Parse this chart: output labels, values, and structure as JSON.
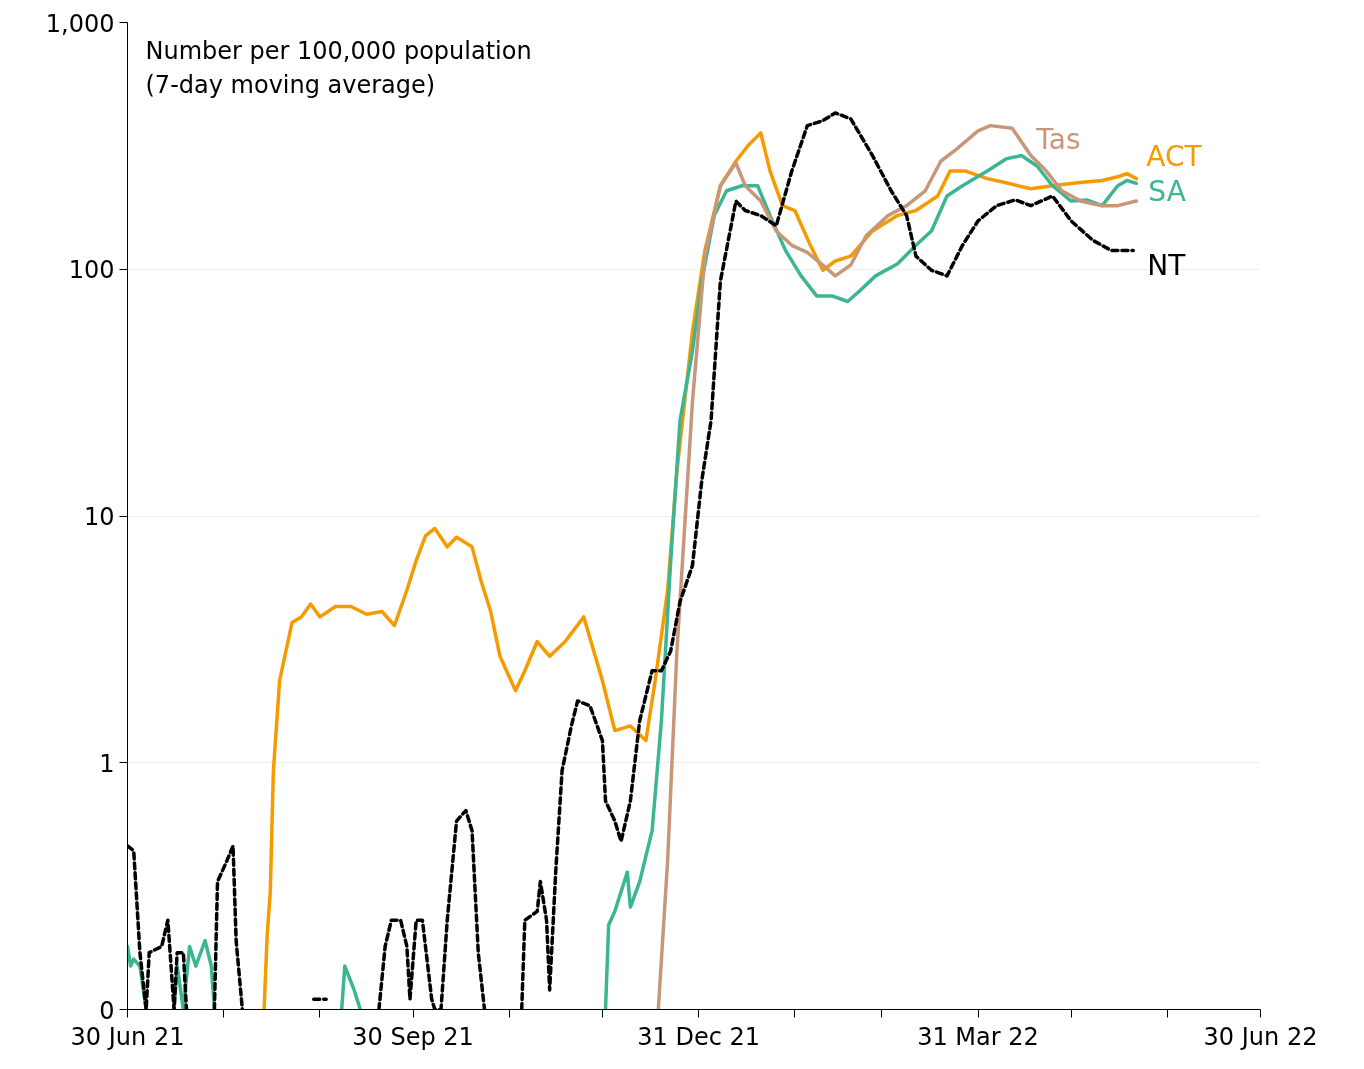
{
  "chart_data": {
    "type": "line",
    "annotations": [
      "Number per 100,000 population\n(7-day moving average)"
    ],
    "xlim": [
      "2021-06-30",
      "2022-06-30"
    ],
    "xticks": [
      {
        "value": "2021-06-30",
        "label": "30 Jun 21"
      },
      {
        "value": "2021-07-31",
        "label": null
      },
      {
        "value": "2021-08-31",
        "label": null
      },
      {
        "value": "2021-09-30",
        "label": "30 Sep 21"
      },
      {
        "value": "2021-10-31",
        "label": null
      },
      {
        "value": "2021-11-30",
        "label": null
      },
      {
        "value": "2021-12-31",
        "label": "31 Dec 21"
      },
      {
        "value": "2022-01-31",
        "label": null
      },
      {
        "value": "2022-02-28",
        "label": null
      },
      {
        "value": "2022-03-31",
        "label": "31 Mar 22"
      },
      {
        "value": "2022-04-30",
        "label": null
      },
      {
        "value": "2022-05-31",
        "label": null
      },
      {
        "value": "2022-06-30",
        "label": "30 Jun 22"
      }
    ],
    "ylim": [
      0.1,
      1000
    ],
    "yticks": [
      {
        "value": 0.1,
        "label": "0"
      },
      1,
      10,
      100,
      {
        "value": 1000,
        "label": "1,000"
      }
    ],
    "log": "y",
    "grid": "y",
    "legend": false,
    "marker": "none",
    "series": [
      {
        "name": "ACT",
        "color": "#f59b00",
        "line_style": "solid",
        "x": [
          "2021-08-13",
          "2021-08-14",
          "2021-08-15",
          "2021-08-16",
          "2021-08-18",
          "2021-08-22",
          "2021-08-25",
          "2021-08-28",
          "2021-08-31",
          "2021-09-05",
          "2021-09-10",
          "2021-09-15",
          "2021-09-20",
          "2021-09-24",
          "2021-09-28",
          "2021-10-01",
          "2021-10-04",
          "2021-10-07",
          "2021-10-11",
          "2021-10-14",
          "2021-10-19",
          "2021-10-22",
          "2021-10-25",
          "2021-10-28",
          "2021-11-02",
          "2021-11-05",
          "2021-11-09",
          "2021-11-13",
          "2021-11-18",
          "2021-11-24",
          "2021-11-30",
          "2021-12-04",
          "2021-12-09",
          "2021-12-14",
          "2021-12-17",
          "2021-12-21",
          "2021-12-24",
          "2021-12-29",
          "2022-01-02",
          "2022-01-07",
          "2022-01-12",
          "2022-01-16",
          "2022-01-20",
          "2022-01-23",
          "2022-01-27",
          "2022-01-31",
          "2022-02-05",
          "2022-02-09",
          "2022-02-13",
          "2022-02-18",
          "2022-02-25",
          "2022-03-05",
          "2022-03-11",
          "2022-03-18",
          "2022-03-22",
          "2022-03-27",
          "2022-04-03",
          "2022-04-09",
          "2022-04-17",
          "2022-04-24",
          "2022-05-02",
          "2022-05-10",
          "2022-05-15",
          "2022-05-18",
          "2022-05-21"
        ],
        "values": [
          0.1,
          0.2,
          0.3,
          0.93,
          2.15,
          3.7,
          3.9,
          4.4,
          3.9,
          4.3,
          4.3,
          4.0,
          4.1,
          3.6,
          5.0,
          6.6,
          8.3,
          8.9,
          7.5,
          8.2,
          7.5,
          5.4,
          4.1,
          2.7,
          1.96,
          2.36,
          3.1,
          2.7,
          3.1,
          3.9,
          2.15,
          1.35,
          1.41,
          1.23,
          2.15,
          5.0,
          15.2,
          56,
          119,
          218,
          274,
          318,
          357,
          250,
          181,
          173,
          125,
          99,
          108,
          113,
          143,
          165,
          173,
          198,
          250,
          250,
          233,
          224,
          212,
          218,
          224,
          229,
          237,
          244,
          233
        ]
      },
      {
        "name": "SA",
        "color": "#3cb592",
        "line_style": "solid",
        "x": [
          "2021-06-30",
          "2021-07-01",
          "2021-07-02",
          "2021-07-04",
          "2021-07-06",
          "2021-07-08",
          "2021-07-15",
          "2021-07-16",
          "2021-07-18",
          "2021-07-20",
          "2021-07-22",
          "2021-07-25",
          "2021-07-27",
          "2021-07-28",
          "2021-07-30",
          "2021-09-07",
          "2021-09-08",
          "2021-09-11",
          "2021-09-13",
          "2021-09-18",
          "2021-12-01",
          "2021-12-02",
          "2021-12-04",
          "2021-12-08",
          "2021-12-09",
          "2021-12-12",
          "2021-12-16",
          "2021-12-19",
          "2021-12-22",
          "2021-12-25",
          "2021-12-29",
          "2022-01-01",
          "2022-01-05",
          "2022-01-09",
          "2022-01-14",
          "2022-01-19",
          "2022-01-23",
          "2022-01-28",
          "2022-02-02",
          "2022-02-07",
          "2022-02-12",
          "2022-02-17",
          "2022-02-21",
          "2022-02-26",
          "2022-03-05",
          "2022-03-11",
          "2022-03-16",
          "2022-03-21",
          "2022-03-26",
          "2022-04-03",
          "2022-04-09",
          "2022-04-14",
          "2022-04-19",
          "2022-04-24",
          "2022-04-30",
          "2022-05-05",
          "2022-05-10",
          "2022-05-15",
          "2022-05-18",
          "2022-05-21"
        ],
        "values": [
          0.18,
          0.15,
          0.16,
          0.15,
          0.1,
          null,
          0.1,
          0.15,
          0.1,
          0.18,
          0.15,
          0.19,
          0.15,
          0.1,
          null,
          0.1,
          0.15,
          0.12,
          0.1,
          null,
          0.1,
          0.22,
          0.25,
          0.36,
          0.26,
          0.33,
          0.53,
          1.48,
          6.6,
          24.4,
          46.6,
          89.5,
          165,
          208,
          218,
          218,
          165,
          119,
          94,
          78,
          78,
          74,
          82,
          94,
          105,
          125,
          143,
          198,
          218,
          250,
          280,
          289,
          262,
          218,
          189,
          191,
          181,
          218,
          229,
          223
        ]
      },
      {
        "name": "Tas",
        "color": "#c8977a",
        "line_style": "solid",
        "x": [
          "2021-12-18",
          "2021-12-21",
          "2021-12-24",
          "2021-12-29",
          "2022-01-02",
          "2022-01-07",
          "2022-01-12",
          "2022-01-15",
          "2022-01-20",
          "2022-01-25",
          "2022-01-30",
          "2022-02-04",
          "2022-02-09",
          "2022-02-13",
          "2022-02-18",
          "2022-02-23",
          "2022-03-02",
          "2022-03-08",
          "2022-03-14",
          "2022-03-19",
          "2022-03-24",
          "2022-03-31",
          "2022-04-04",
          "2022-04-11",
          "2022-04-17",
          "2022-04-22",
          "2022-04-27",
          "2022-05-03",
          "2022-05-10",
          "2022-05-15",
          "2022-05-21"
        ],
        "values": [
          0.1,
          0.4,
          2.84,
          29,
          113,
          218,
          270,
          218,
          189,
          143,
          125,
          117,
          104,
          94,
          104,
          137,
          165,
          181,
          208,
          274,
          306,
          364,
          382,
          373,
          289,
          250,
          208,
          189,
          181,
          181,
          189
        ]
      },
      {
        "name": "NT",
        "color": "#000000",
        "line_style": "dashed",
        "x": [
          "2021-06-30",
          "2021-07-02",
          "2021-07-04",
          "2021-07-06",
          "2021-07-07",
          "2021-07-11",
          "2021-07-13",
          "2021-07-15",
          "2021-07-16",
          "2021-07-18",
          "2021-07-19",
          "2021-07-22",
          "2021-07-28",
          "2021-07-29",
          "2021-08-01",
          "2021-08-03",
          "2021-08-04",
          "2021-08-06",
          "2021-08-20",
          "2021-08-29",
          "2021-09-02",
          "2021-09-10",
          "2021-09-19",
          "2021-09-21",
          "2021-09-23",
          "2021-09-26",
          "2021-09-28",
          "2021-09-29",
          "2021-10-01",
          "2021-10-03",
          "2021-10-06",
          "2021-10-07",
          "2021-10-09",
          "2021-10-11",
          "2021-10-14",
          "2021-10-17",
          "2021-10-19",
          "2021-10-21",
          "2021-10-23",
          "2021-11-01",
          "2021-11-04",
          "2021-11-05",
          "2021-11-09",
          "2021-11-10",
          "2021-11-12",
          "2021-11-13",
          "2021-11-15",
          "2021-11-17",
          "2021-11-20",
          "2021-11-22",
          "2021-11-26",
          "2021-11-30",
          "2021-12-01",
          "2021-12-04",
          "2021-12-06",
          "2021-12-09",
          "2021-12-12",
          "2021-12-16",
          "2021-12-19",
          "2021-12-22",
          "2021-12-25",
          "2021-12-29",
          "2022-01-01",
          "2022-01-04",
          "2022-01-07",
          "2022-01-12",
          "2022-01-15",
          "2022-01-20",
          "2022-01-25",
          "2022-01-30",
          "2022-02-04",
          "2022-02-09",
          "2022-02-13",
          "2022-02-18",
          "2022-02-25",
          "2022-03-03",
          "2022-03-08",
          "2022-03-11",
          "2022-03-16",
          "2022-03-21",
          "2022-03-26",
          "2022-03-31",
          "2022-04-06",
          "2022-04-12",
          "2022-04-17",
          "2022-04-24",
          "2022-04-30",
          "2022-05-07",
          "2022-05-13",
          "2022-05-20"
        ],
        "values": [
          0.46,
          0.44,
          0.17,
          0.1,
          0.17,
          0.18,
          0.23,
          0.1,
          0.17,
          0.17,
          0.1,
          null,
          0.1,
          0.33,
          0.4,
          0.46,
          0.19,
          0.1,
          null,
          0.11,
          0.11,
          null,
          0.1,
          0.18,
          0.23,
          0.23,
          0.18,
          0.11,
          0.23,
          0.23,
          0.11,
          0.1,
          0.1,
          0.23,
          0.58,
          0.64,
          0.53,
          0.17,
          0.1,
          null,
          0.1,
          0.23,
          0.25,
          0.33,
          0.23,
          0.12,
          0.37,
          0.93,
          1.41,
          1.78,
          1.7,
          1.23,
          0.7,
          0.58,
          0.48,
          0.7,
          1.48,
          2.36,
          2.36,
          2.84,
          4.5,
          6.3,
          13.9,
          24.4,
          89.5,
          189,
          173,
          165,
          150,
          250,
          382,
          400,
          430,
          407,
          289,
          208,
          165,
          113,
          99,
          94,
          125,
          157,
          181,
          191,
          181,
          198,
          157,
          131,
          119,
          119
        ]
      }
    ]
  }
}
